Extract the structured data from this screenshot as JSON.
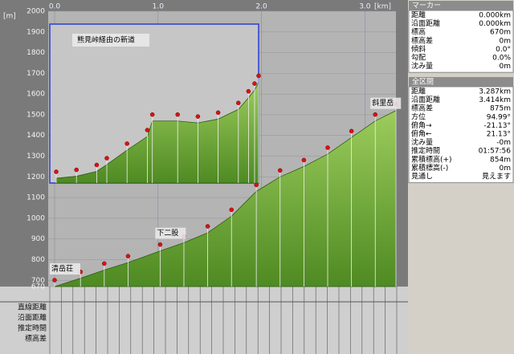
{
  "chart_data": [
    {
      "type": "area",
      "color": "#6aa332",
      "x": [
        0,
        0.25,
        0.48,
        0.71,
        1.02,
        1.25,
        1.48,
        1.71,
        1.95,
        2.18,
        2.41,
        2.64,
        2.87,
        3.1,
        3.3
      ],
      "values": [
        670,
        710,
        750,
        786,
        842,
        882,
        930,
        1010,
        1130,
        1200,
        1250,
        1310,
        1390,
        1470,
        1520
      ],
      "xlim": [
        0,
        3.3
      ],
      "ylim": [
        670,
        2000
      ],
      "xticks": [
        {
          "value": 0,
          "label": "0.0"
        },
        {
          "value": 1,
          "label": "1.0"
        },
        {
          "value": 2,
          "label": "2.0"
        },
        {
          "value": 3,
          "label": "3.0"
        }
      ],
      "yticks": [
        670,
        700,
        800,
        900,
        1000,
        1100,
        1200,
        1300,
        1400,
        1500,
        1600,
        1700,
        1800,
        1900,
        2000
      ],
      "x_unit": "[km]",
      "y_unit": "[m]",
      "annotations": [
        {
          "text": "清岳荘",
          "x": 0
        },
        {
          "text": "下二股",
          "x": 1.02
        },
        {
          "text": "斜里岳",
          "x": 3.1
        }
      ]
    },
    {
      "type": "area",
      "title": "熊見峠経由の新道",
      "color": "#6aa332",
      "x": [
        0,
        0.2,
        0.4,
        0.5,
        0.7,
        0.9,
        0.95,
        1.2,
        1.4,
        1.6,
        1.8,
        1.9,
        1.96,
        2.0
      ],
      "values": [
        1205,
        1215,
        1240,
        1275,
        1350,
        1420,
        1500,
        1500,
        1490,
        1510,
        1560,
        1620,
        1660,
        1700
      ],
      "xlim": [
        0,
        2.0
      ],
      "ylim": [
        1180,
        2000
      ]
    }
  ],
  "table": {
    "row_labels": [
      "直線距離",
      "沿面距離",
      "推定時間",
      "標高差"
    ]
  },
  "marker_panel": {
    "title": "マーカー",
    "rows": [
      [
        "距離",
        "0.000km"
      ],
      [
        "沿面距離",
        "0.000km"
      ],
      [
        "標高",
        "670m"
      ],
      [
        "標高差",
        "0m"
      ],
      [
        "傾斜",
        "0.0°"
      ],
      [
        "勾配",
        "0.0%"
      ],
      [
        "沈み量",
        "0m"
      ]
    ]
  },
  "total_panel": {
    "title": "全区間",
    "rows": [
      [
        "距離",
        "3.287km"
      ],
      [
        "沿面距離",
        "3.414km"
      ],
      [
        "標高差",
        "875m"
      ],
      [
        "方位",
        "94.99°"
      ],
      [
        "俯角→",
        "-21.13°"
      ],
      [
        "俯角←",
        "21.13°"
      ],
      [
        "沈み量",
        "-0m"
      ],
      [
        "推定時間",
        "01:57:56"
      ],
      [
        "累積標高(+)",
        "854m"
      ],
      [
        "累積標高(-)",
        "0m"
      ],
      [
        "見通し",
        "見えます"
      ]
    ]
  }
}
